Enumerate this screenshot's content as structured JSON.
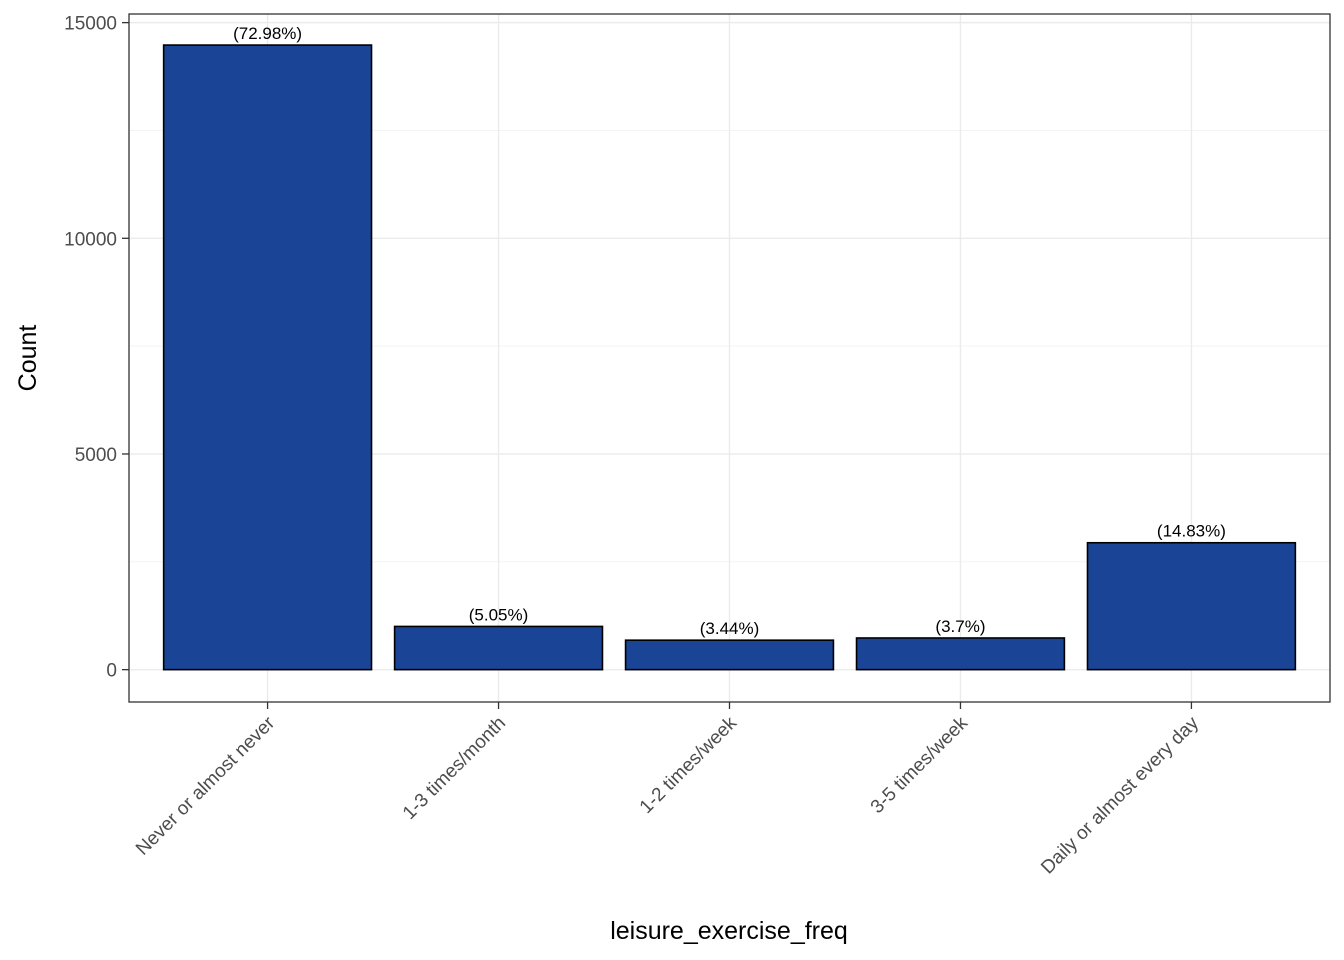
{
  "chart_data": {
    "type": "bar",
    "categories": [
      "Never or almost never",
      "1-3 times/month",
      "1-2 times/week",
      "3-5 times/week",
      "Daily or almost every day"
    ],
    "values": [
      14480,
      1002,
      683,
      734,
      2942
    ],
    "labels": [
      "(72.98%)",
      "(5.05%)",
      "(3.44%)",
      "(3.7%)",
      "(14.83%)"
    ],
    "xlabel": "leisure_exercise_freq",
    "ylabel": "Count",
    "ylim": [
      -750,
      15200
    ],
    "yticks": [
      0,
      5000,
      10000,
      15000
    ],
    "ytick_labels": [
      "0",
      "5000",
      "10000",
      "15000"
    ],
    "grid": true,
    "colors": {
      "bar_fill": "#1A4496",
      "bar_stroke": "#000000",
      "grid_major": "#EBEBEB",
      "grid_minor": "#F3F3F3",
      "panel_border": "#333333"
    }
  }
}
